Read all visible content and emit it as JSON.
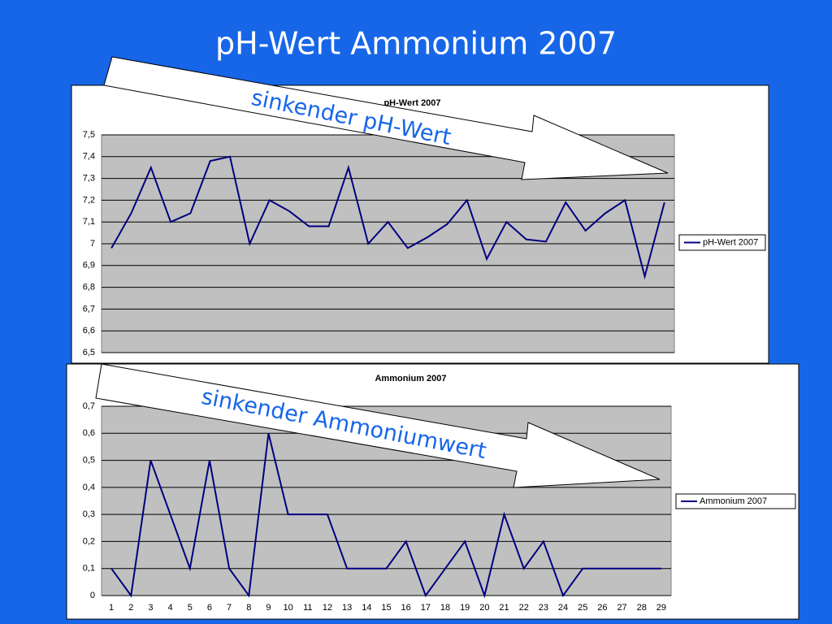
{
  "title": "pH-Wert  Ammonium 2007",
  "chart_data": [
    {
      "type": "line",
      "title": "pH-Wert 2007",
      "categories": [
        null,
        null,
        null,
        null,
        null,
        null,
        null,
        null,
        null,
        null,
        null,
        null,
        null,
        null,
        null,
        null,
        null,
        null,
        null,
        null,
        null,
        null,
        null,
        null,
        null,
        null,
        null,
        null,
        null
      ],
      "series": [
        {
          "name": "pH-Wert 2007",
          "color": "#000080",
          "values": [
            6.98,
            7.14,
            7.35,
            7.1,
            7.14,
            7.38,
            7.4,
            7.0,
            7.2,
            7.15,
            7.08,
            7.08,
            7.35,
            7.0,
            7.1,
            6.98,
            7.03,
            7.09,
            7.2,
            6.93,
            7.1,
            7.02,
            7.01,
            7.19,
            7.06,
            7.14,
            7.2,
            6.85,
            7.19
          ]
        }
      ],
      "ylim": [
        6.5,
        7.5
      ],
      "yticks": [
        {
          "value": 6.5,
          "label": "6,5"
        },
        {
          "value": 6.6,
          "label": "6,6"
        },
        {
          "value": 6.7,
          "label": "6,7"
        },
        {
          "value": 6.8,
          "label": "6,8"
        },
        {
          "value": 6.9,
          "label": "6,9"
        },
        7,
        {
          "value": 7.1,
          "label": "7,1"
        },
        {
          "value": 7.2,
          "label": "7,2"
        },
        {
          "value": 7.3,
          "label": "7,3"
        },
        {
          "value": 7.4,
          "label": "7,4"
        },
        {
          "value": 7.5,
          "label": "7,5"
        }
      ],
      "grid": true,
      "legend": "right",
      "annotations": [
        "sinkender pH-Wert"
      ]
    },
    {
      "type": "line",
      "title": "Ammonium 2007",
      "categories": [
        "1",
        "2",
        "3",
        "4",
        "5",
        "6",
        "7",
        "8",
        "9",
        "10",
        "11",
        "12",
        "13",
        "14",
        "15",
        "16",
        "17",
        "18",
        "19",
        "20",
        "21",
        "22",
        "23",
        "24",
        "25",
        "26",
        "27",
        "28",
        "29"
      ],
      "series": [
        {
          "name": "Ammonium 2007",
          "color": "#000080",
          "values": [
            0.1,
            0,
            0.5,
            0.3,
            0.1,
            0.5,
            0.1,
            0,
            0.6,
            0.3,
            0.3,
            0.3,
            0.1,
            0.1,
            0.1,
            0.2,
            0,
            0.1,
            0.2,
            0,
            0.3,
            0.1,
            0.2,
            0,
            0.1,
            0.1,
            0.1,
            0.1,
            0.1
          ]
        }
      ],
      "ylim": [
        0,
        0.7
      ],
      "yticks": [
        0,
        {
          "value": 0.1,
          "label": "0,1"
        },
        {
          "value": 0.2,
          "label": "0,2"
        },
        {
          "value": 0.3,
          "label": "0,3"
        },
        {
          "value": 0.4,
          "label": "0,4"
        },
        {
          "value": 0.5,
          "label": "0,5"
        },
        {
          "value": 0.6,
          "label": "0,6"
        },
        {
          "value": 0.7,
          "label": "0,7"
        }
      ],
      "grid": true,
      "legend": "right",
      "annotations": [
        "sinkender Ammoniumwert"
      ]
    }
  ]
}
